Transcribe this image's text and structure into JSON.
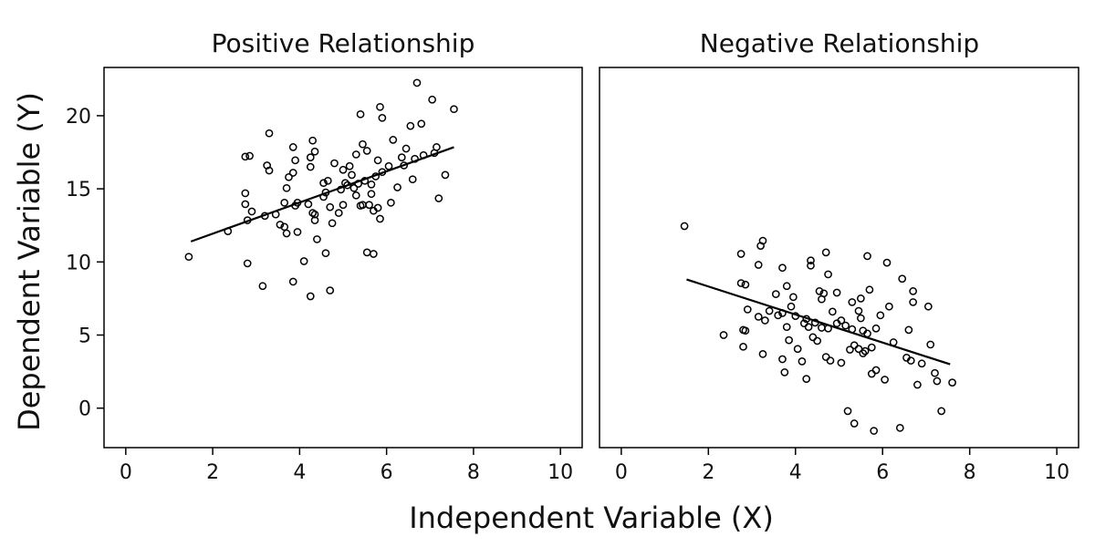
{
  "chart_data": [
    {
      "type": "scatter",
      "title": "Positive Relationship",
      "xlim": [
        -0.5,
        10.5
      ],
      "ylim": [
        -2.7,
        23.3
      ],
      "x_ticks": [
        0,
        2,
        4,
        6,
        8,
        10
      ],
      "y_ticks": [
        0,
        5,
        10,
        15,
        20
      ],
      "grid": false,
      "legend": false,
      "points": [
        [
          1.45,
          10.35
        ],
        [
          2.35,
          12.1
        ],
        [
          2.75,
          17.2
        ],
        [
          2.85,
          17.25
        ],
        [
          2.75,
          14.7
        ],
        [
          2.75,
          13.95
        ],
        [
          2.9,
          13.45
        ],
        [
          2.8,
          12.85
        ],
        [
          2.8,
          9.9
        ],
        [
          3.15,
          8.35
        ],
        [
          3.2,
          13.15
        ],
        [
          3.25,
          16.6
        ],
        [
          3.3,
          16.25
        ],
        [
          3.3,
          18.8
        ],
        [
          3.45,
          13.25
        ],
        [
          3.55,
          12.55
        ],
        [
          3.65,
          12.4
        ],
        [
          3.7,
          11.95
        ],
        [
          3.65,
          14.05
        ],
        [
          3.7,
          15.05
        ],
        [
          3.75,
          15.8
        ],
        [
          3.85,
          16.1
        ],
        [
          3.85,
          17.85
        ],
        [
          3.9,
          16.95
        ],
        [
          3.9,
          13.85
        ],
        [
          3.95,
          14.05
        ],
        [
          3.85,
          8.65
        ],
        [
          3.95,
          12.05
        ],
        [
          4.1,
          10.05
        ],
        [
          4.2,
          13.95
        ],
        [
          4.25,
          16.5
        ],
        [
          4.25,
          17.15
        ],
        [
          4.3,
          13.35
        ],
        [
          4.35,
          13.25
        ],
        [
          4.35,
          17.55
        ],
        [
          4.3,
          18.3
        ],
        [
          4.35,
          12.85
        ],
        [
          4.4,
          11.55
        ],
        [
          4.25,
          7.65
        ],
        [
          4.55,
          14.45
        ],
        [
          4.55,
          15.4
        ],
        [
          4.6,
          14.75
        ],
        [
          4.65,
          15.55
        ],
        [
          4.6,
          10.6
        ],
        [
          4.7,
          8.05
        ],
        [
          4.7,
          13.75
        ],
        [
          4.75,
          12.65
        ],
        [
          4.8,
          16.75
        ],
        [
          4.9,
          13.35
        ],
        [
          4.95,
          14.95
        ],
        [
          5.0,
          13.9
        ],
        [
          5.0,
          16.3
        ],
        [
          5.05,
          15.4
        ],
        [
          5.1,
          15.25
        ],
        [
          5.15,
          16.55
        ],
        [
          5.2,
          15.95
        ],
        [
          5.25,
          15.05
        ],
        [
          5.3,
          14.55
        ],
        [
          5.3,
          17.35
        ],
        [
          5.35,
          15.35
        ],
        [
          5.4,
          20.1
        ],
        [
          5.4,
          13.85
        ],
        [
          5.45,
          13.9
        ],
        [
          5.45,
          18.05
        ],
        [
          5.5,
          15.55
        ],
        [
          5.55,
          17.6
        ],
        [
          5.55,
          10.65
        ],
        [
          5.6,
          13.9
        ],
        [
          5.65,
          14.65
        ],
        [
          5.65,
          15.3
        ],
        [
          5.7,
          13.5
        ],
        [
          5.7,
          10.55
        ],
        [
          5.75,
          15.85
        ],
        [
          5.8,
          13.7
        ],
        [
          5.8,
          16.95
        ],
        [
          5.85,
          12.95
        ],
        [
          5.9,
          16.15
        ],
        [
          5.9,
          19.85
        ],
        [
          5.85,
          20.6
        ],
        [
          6.05,
          16.55
        ],
        [
          6.1,
          14.05
        ],
        [
          6.15,
          18.35
        ],
        [
          6.25,
          15.1
        ],
        [
          6.35,
          17.15
        ],
        [
          6.4,
          16.6
        ],
        [
          6.45,
          17.75
        ],
        [
          6.55,
          19.3
        ],
        [
          6.6,
          15.65
        ],
        [
          6.65,
          17.05
        ],
        [
          6.7,
          22.25
        ],
        [
          6.8,
          19.45
        ],
        [
          6.85,
          17.3
        ],
        [
          7.05,
          21.1
        ],
        [
          7.1,
          17.45
        ],
        [
          7.15,
          17.85
        ],
        [
          7.2,
          14.35
        ],
        [
          7.35,
          15.95
        ],
        [
          7.55,
          20.45
        ]
      ],
      "fit_line": {
        "x": [
          1.5,
          7.55
        ],
        "y": [
          11.4,
          17.85
        ]
      }
    },
    {
      "type": "scatter",
      "title": "Negative Relationship",
      "xlim": [
        -0.5,
        10.5
      ],
      "ylim": [
        -2.7,
        23.3
      ],
      "x_ticks": [
        0,
        2,
        4,
        6,
        8,
        10
      ],
      "y_ticks": [
        0,
        5,
        10,
        15,
        20
      ],
      "grid": false,
      "legend": false,
      "points": [
        [
          1.45,
          12.45
        ],
        [
          2.35,
          5.0
        ],
        [
          2.75,
          10.55
        ],
        [
          2.75,
          8.55
        ],
        [
          2.8,
          5.35
        ],
        [
          2.8,
          4.2
        ],
        [
          2.85,
          5.3
        ],
        [
          2.85,
          8.45
        ],
        [
          2.9,
          6.75
        ],
        [
          3.15,
          6.25
        ],
        [
          3.15,
          9.8
        ],
        [
          3.2,
          11.1
        ],
        [
          3.25,
          11.45
        ],
        [
          3.25,
          3.7
        ],
        [
          3.3,
          6.0
        ],
        [
          3.4,
          6.65
        ],
        [
          3.55,
          7.8
        ],
        [
          3.6,
          6.35
        ],
        [
          3.7,
          9.6
        ],
        [
          3.7,
          6.5
        ],
        [
          3.7,
          3.35
        ],
        [
          3.75,
          2.45
        ],
        [
          3.8,
          8.35
        ],
        [
          3.8,
          5.55
        ],
        [
          3.85,
          4.65
        ],
        [
          3.9,
          6.95
        ],
        [
          3.95,
          7.6
        ],
        [
          4.0,
          6.3
        ],
        [
          4.05,
          4.05
        ],
        [
          4.15,
          3.2
        ],
        [
          4.2,
          5.8
        ],
        [
          4.25,
          2.0
        ],
        [
          4.25,
          6.1
        ],
        [
          4.3,
          5.55
        ],
        [
          4.35,
          10.1
        ],
        [
          4.35,
          9.75
        ],
        [
          4.4,
          4.85
        ],
        [
          4.45,
          5.85
        ],
        [
          4.5,
          4.6
        ],
        [
          4.55,
          8.0
        ],
        [
          4.6,
          5.5
        ],
        [
          4.6,
          7.45
        ],
        [
          4.65,
          7.85
        ],
        [
          4.7,
          10.65
        ],
        [
          4.7,
          3.5
        ],
        [
          4.75,
          5.45
        ],
        [
          4.75,
          9.15
        ],
        [
          4.8,
          3.25
        ],
        [
          4.85,
          6.6
        ],
        [
          4.95,
          7.9
        ],
        [
          4.95,
          5.8
        ],
        [
          5.05,
          6.0
        ],
        [
          5.05,
          3.1
        ],
        [
          5.15,
          5.65
        ],
        [
          5.2,
          -0.2
        ],
        [
          5.25,
          4.0
        ],
        [
          5.3,
          7.25
        ],
        [
          5.3,
          5.4
        ],
        [
          5.35,
          -1.05
        ],
        [
          5.35,
          4.3
        ],
        [
          5.45,
          6.65
        ],
        [
          5.45,
          4.05
        ],
        [
          5.5,
          7.5
        ],
        [
          5.5,
          6.15
        ],
        [
          5.55,
          5.3
        ],
        [
          5.55,
          3.75
        ],
        [
          5.6,
          3.9
        ],
        [
          5.65,
          10.4
        ],
        [
          5.65,
          5.1
        ],
        [
          5.7,
          8.1
        ],
        [
          5.75,
          4.15
        ],
        [
          5.75,
          2.35
        ],
        [
          5.8,
          -1.55
        ],
        [
          5.85,
          5.45
        ],
        [
          5.85,
          2.6
        ],
        [
          5.95,
          6.35
        ],
        [
          6.05,
          1.95
        ],
        [
          6.1,
          9.95
        ],
        [
          6.15,
          6.95
        ],
        [
          6.25,
          4.5
        ],
        [
          6.4,
          -1.35
        ],
        [
          6.45,
          8.85
        ],
        [
          6.55,
          3.45
        ],
        [
          6.6,
          5.35
        ],
        [
          6.65,
          3.25
        ],
        [
          6.7,
          7.25
        ],
        [
          6.7,
          8.0
        ],
        [
          6.8,
          1.6
        ],
        [
          6.9,
          3.05
        ],
        [
          7.05,
          6.95
        ],
        [
          7.1,
          4.35
        ],
        [
          7.2,
          2.4
        ],
        [
          7.25,
          1.85
        ],
        [
          7.35,
          -0.2
        ],
        [
          7.6,
          1.75
        ]
      ],
      "fit_line": {
        "x": [
          1.5,
          7.55
        ],
        "y": [
          8.8,
          3.0
        ]
      }
    }
  ],
  "shared_axes": {
    "xlabel": "Independent Variable (X)",
    "ylabel": "Dependent Variable (Y)"
  }
}
